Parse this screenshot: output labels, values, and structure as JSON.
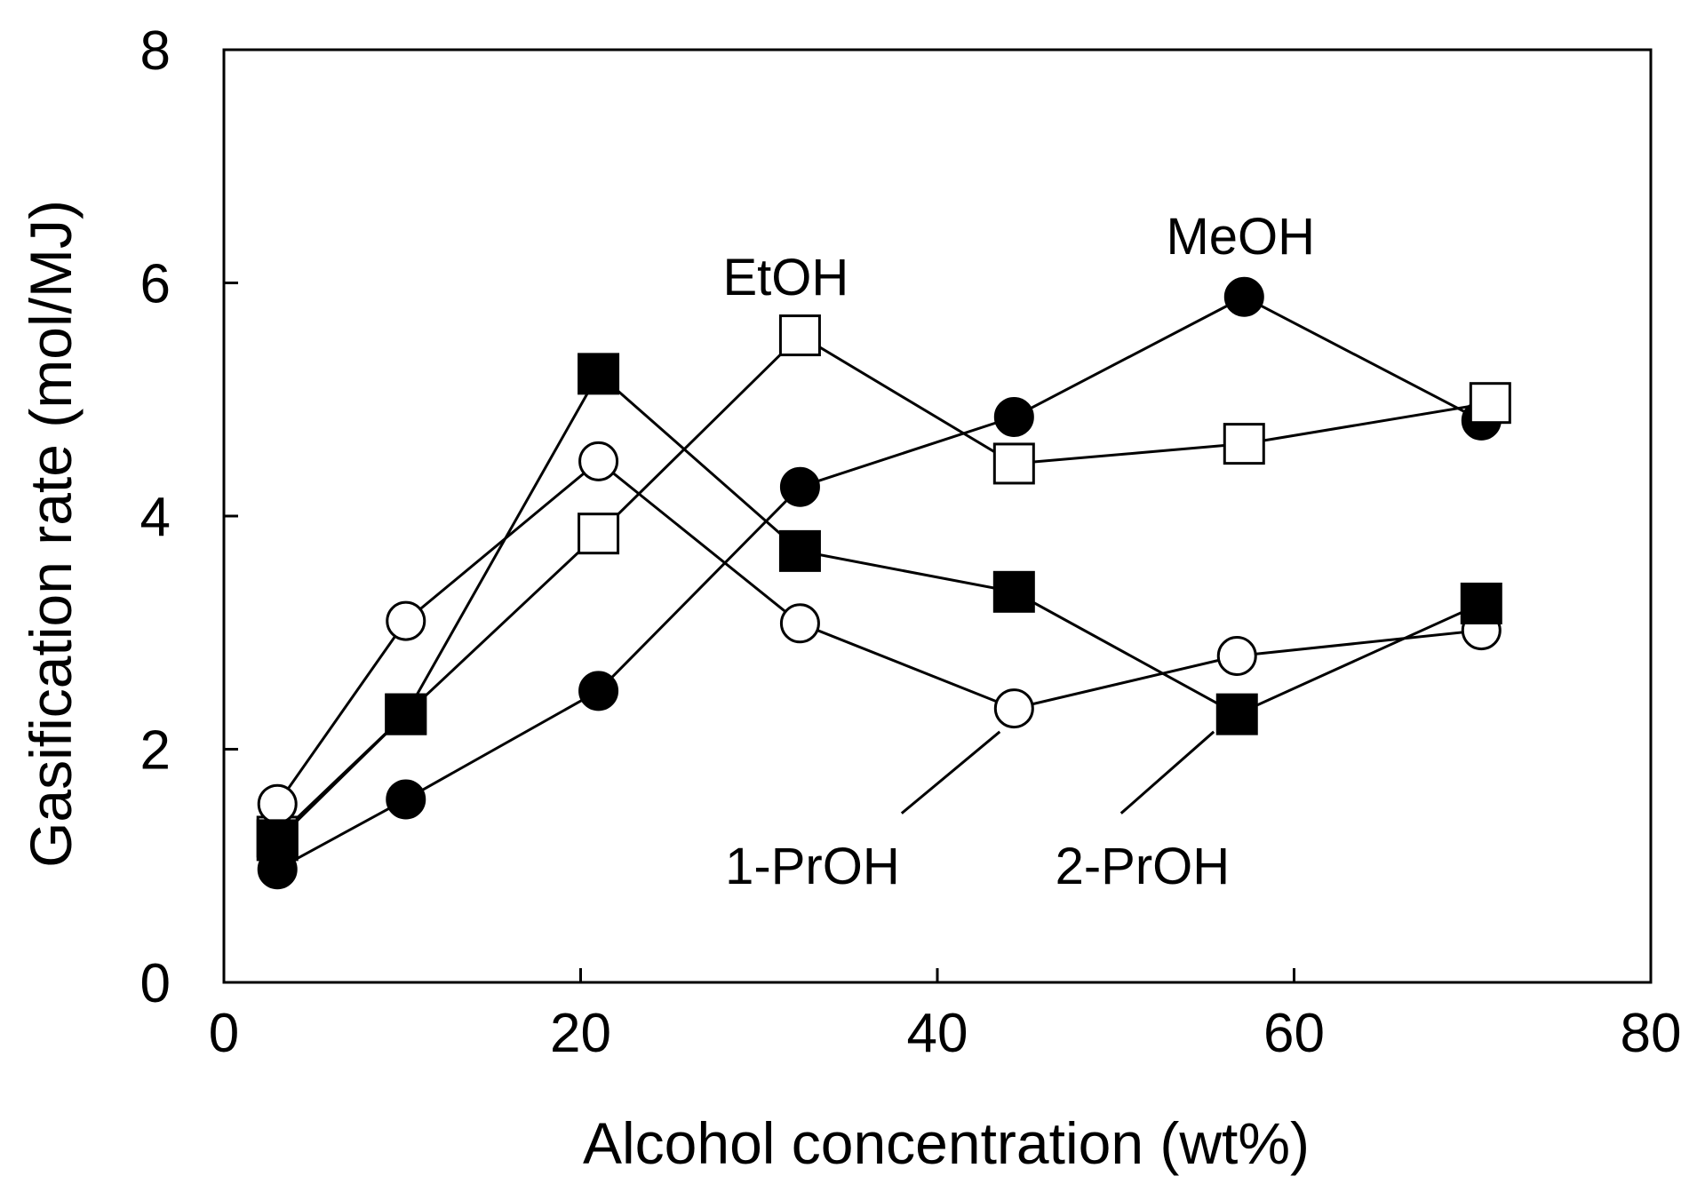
{
  "chart_data": {
    "type": "line",
    "title": "",
    "xlabel": "Alcohol concentration (wt%)",
    "ylabel": "Gasification rate (mol/MJ)",
    "xlim": [
      0,
      80
    ],
    "ylim": [
      0,
      8
    ],
    "xticks": [
      0,
      20,
      40,
      60,
      80
    ],
    "yticks": [
      0,
      2,
      4,
      6,
      8
    ],
    "xtick_labels": [
      "0",
      "20",
      "40",
      "60",
      "80"
    ],
    "ytick_labels": [
      "0",
      "2",
      "4",
      "6",
      "8"
    ],
    "grid": false,
    "legend": "none (series labelled by annotations)",
    "series": [
      {
        "name": "MeOH",
        "marker": "filled-circle",
        "x": [
          3,
          10.2,
          21,
          32.3,
          44.3,
          57.2,
          70.5
        ],
        "y": [
          0.97,
          1.57,
          2.5,
          4.25,
          4.85,
          5.88,
          4.82
        ]
      },
      {
        "name": "EtOH",
        "marker": "open-square",
        "x": [
          3,
          10.2,
          21,
          32.3,
          44.3,
          57.2,
          71
        ],
        "y": [
          1.25,
          2.3,
          3.85,
          5.55,
          4.45,
          4.62,
          4.97
        ]
      },
      {
        "name": "1-PrOH",
        "marker": "open-circle",
        "x": [
          3,
          10.2,
          21,
          32.3,
          44.3,
          56.8,
          70.5
        ],
        "y": [
          1.53,
          3.1,
          4.47,
          3.08,
          2.35,
          2.8,
          3.02
        ]
      },
      {
        "name": "2-PrOH",
        "marker": "filled-square",
        "x": [
          3,
          10.2,
          21,
          32.3,
          44.3,
          56.8,
          70.5
        ],
        "y": [
          1.22,
          2.3,
          5.22,
          3.7,
          3.35,
          2.3,
          3.25
        ]
      }
    ],
    "annotations": [
      {
        "text": "MeOH",
        "x": 57,
        "y": 6.4
      },
      {
        "text": "EtOH",
        "x": 31.5,
        "y": 6.05
      },
      {
        "text": "1-PrOH",
        "x": 33,
        "y": 1.0,
        "pointer_from": [
          38,
          1.45
        ],
        "pointer_to": [
          43.5,
          2.15
        ]
      },
      {
        "text": "2-PrOH",
        "x": 51.5,
        "y": 1.0,
        "pointer_from": [
          50.3,
          1.45
        ],
        "pointer_to": [
          55.5,
          2.15
        ]
      }
    ]
  }
}
